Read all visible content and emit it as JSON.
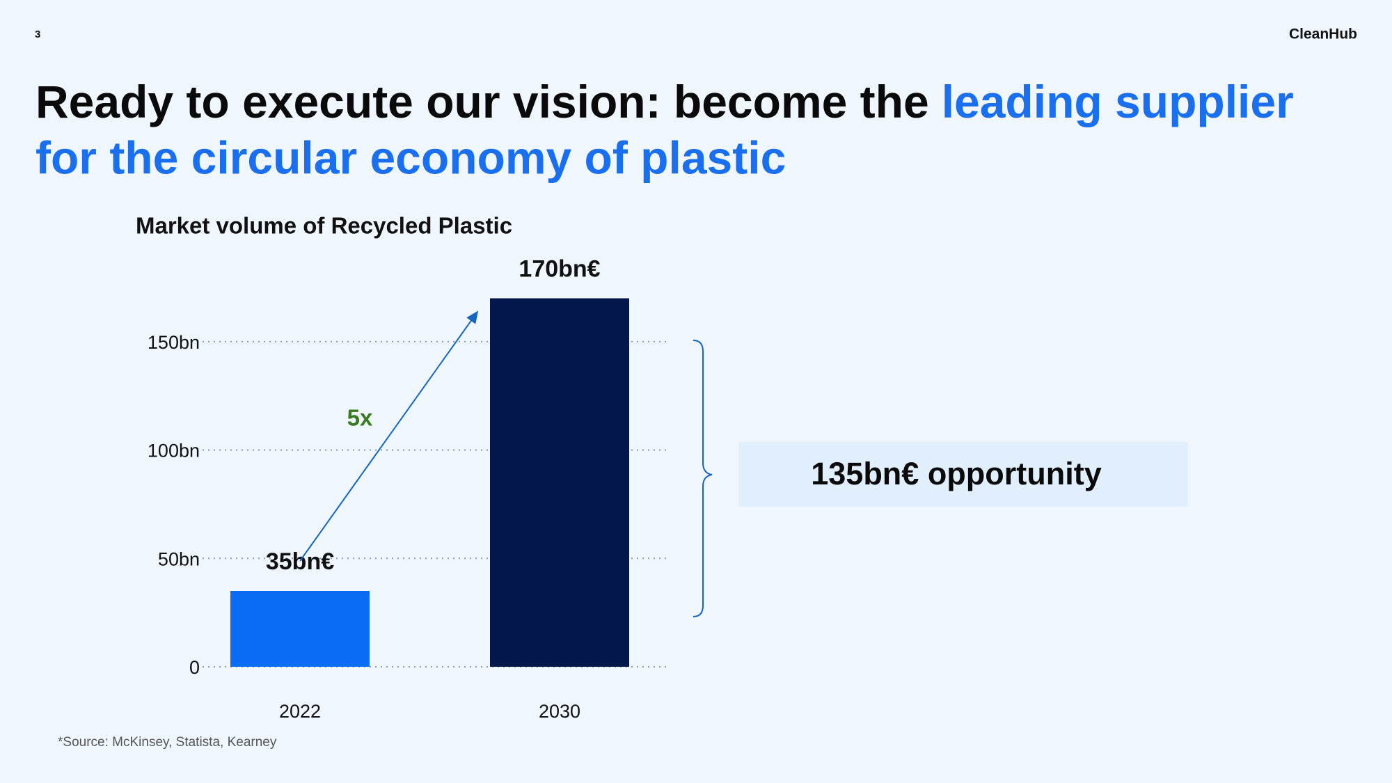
{
  "header": {
    "page_number": "3",
    "brand": "CleanHub"
  },
  "title": {
    "lead": "Ready to execute our vision: become the",
    "highlight": [
      "leading supplier",
      "for the circular economy of plastic"
    ]
  },
  "chart_data": {
    "type": "bar",
    "title": "Market volume of Recycled Plastic",
    "categories": [
      "2022",
      "2030"
    ],
    "values": [
      35,
      170
    ],
    "value_labels": [
      "35bn€",
      "170bn€"
    ],
    "colors": [
      "#0a6cf5",
      "#03174d"
    ],
    "ylim": [
      0,
      175
    ],
    "yticks": [
      0,
      {
        "value": 50,
        "label": "50bn"
      },
      {
        "value": 100,
        "label": "100bn"
      },
      {
        "value": 150,
        "label": "150bn"
      }
    ],
    "grid": true,
    "annotations": {
      "growth": "5x",
      "opportunity": "135bn€ opportunity"
    }
  },
  "footnote": "*Source: McKinsey, Statista, Kearney"
}
